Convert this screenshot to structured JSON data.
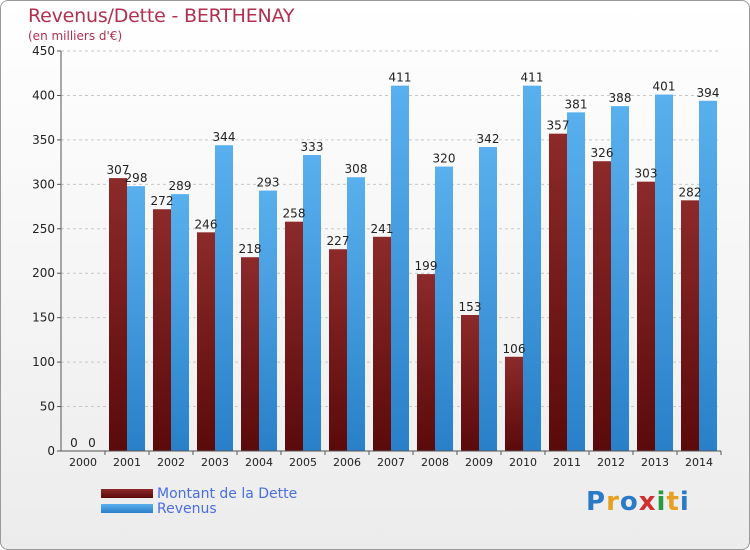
{
  "header": {
    "title": "Revenus/Dette - BERTHENAY",
    "subtitle": "(en milliers d'€)"
  },
  "legend": {
    "items": [
      "Montant de la Dette",
      "Revenus"
    ]
  },
  "logo": {
    "text": "Proxiti",
    "letters": [
      "P",
      "r",
      "o",
      "x",
      "i",
      "t",
      "i"
    ]
  },
  "colors": {
    "dette": "#7a1a1a",
    "revenus": "#3d9ae0",
    "axis_text": "#222222",
    "grid": "#c8c8c8",
    "title": "#b03050",
    "legend_text": "#4a6ee0"
  },
  "chart_data": {
    "type": "bar",
    "title": "Revenus/Dette - BERTHENAY",
    "subtitle": "(en milliers d'€)",
    "categories": [
      "2000",
      "2001",
      "2002",
      "2003",
      "2004",
      "2005",
      "2006",
      "2007",
      "2008",
      "2009",
      "2010",
      "2011",
      "2012",
      "2013",
      "2014"
    ],
    "series": [
      {
        "name": "Montant de la Dette",
        "values": [
          0,
          307,
          272,
          246,
          218,
          258,
          227,
          241,
          199,
          153,
          106,
          357,
          326,
          303,
          282
        ]
      },
      {
        "name": "Revenus",
        "values": [
          0,
          298,
          289,
          344,
          293,
          333,
          308,
          411,
          320,
          342,
          411,
          381,
          388,
          401,
          394
        ]
      }
    ],
    "ylim": [
      0,
      450
    ],
    "yticks": [
      0,
      50,
      100,
      150,
      200,
      250,
      300,
      350,
      400,
      450
    ],
    "grid": true,
    "legend_position": "bottom-left"
  }
}
